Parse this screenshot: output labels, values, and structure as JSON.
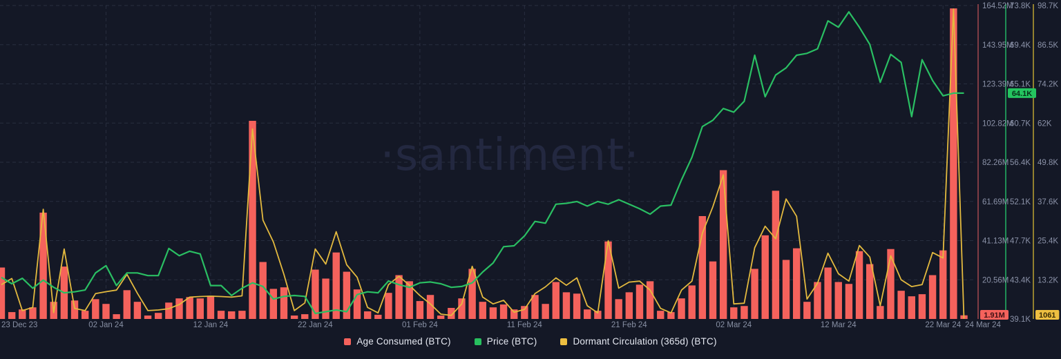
{
  "watermark": "·santiment·",
  "legend": {
    "items": [
      {
        "label": "Age Consumed (BTC)",
        "color": "#f5625c"
      },
      {
        "label": "Price (BTC)",
        "color": "#27c05e"
      },
      {
        "label": "Dormant Circulation (365d) (BTC)",
        "color": "#eebf41"
      }
    ]
  },
  "colors": {
    "background": "#141826",
    "grid": "rgba(152,162,196,0.16)",
    "tick_text": "#8b92a8",
    "x_tick_text": "#8890a4",
    "bar": "#f5625c",
    "price_line": "#2abf63",
    "dormant_line": "#e4ba3f",
    "axis_line_age": "#803c45",
    "axis_line_price": "#1f8f55",
    "axis_line_dormant": "#92802f",
    "badge_age_bg": "#f5625c",
    "badge_age_text": "#401014",
    "badge_price_bg": "#24c45f",
    "badge_price_text": "#06301a",
    "badge_dormant_bg": "#eebf41",
    "badge_dormant_text": "#3a2c05"
  },
  "chart_data": {
    "type": "mixed",
    "title": "",
    "x_range": [
      "23 Dec 23",
      "24 Mar 24"
    ],
    "grid": true,
    "legend_position": "bottom",
    "x_ticks": [
      {
        "label": "23 Dec 23",
        "day": 0
      },
      {
        "label": "02 Jan 24",
        "day": 10
      },
      {
        "label": "12 Jan 24",
        "day": 20
      },
      {
        "label": "22 Jan 24",
        "day": 30
      },
      {
        "label": "01 Feb 24",
        "day": 40
      },
      {
        "label": "11 Feb 24",
        "day": 50
      },
      {
        "label": "21 Feb 24",
        "day": 60
      },
      {
        "label": "02 Mar 24",
        "day": 70
      },
      {
        "label": "12 Mar 24",
        "day": 80
      },
      {
        "label": "22 Mar 24",
        "day": 90
      },
      {
        "label": "24 Mar 24",
        "day": 92
      }
    ],
    "series": [
      {
        "name": "Age Consumed (BTC)",
        "type": "bar",
        "unit": "M",
        "axis": {
          "min": 0,
          "max": 164.52,
          "ticks": [
            "164.52M",
            "143.95M",
            "123.39M",
            "102.82M",
            "82.26M",
            "61.69M",
            "41.13M",
            "20.56M"
          ],
          "current_badge": "1.91M",
          "current_value": 1.91
        },
        "values": [
          27,
          3.6,
          5,
          6.1,
          55.8,
          9,
          27.5,
          9.7,
          4.3,
          10.4,
          7.9,
          2.5,
          15.1,
          9,
          1.8,
          3.2,
          8.6,
          10.8,
          11.5,
          10.8,
          12.2,
          4.3,
          4,
          4.3,
          104,
          29.9,
          15.8,
          16.6,
          1.8,
          2.5,
          25.9,
          21.2,
          34.9,
          24.8,
          15.5,
          4,
          2.2,
          13.7,
          23,
          19.8,
          9.4,
          12.6,
          1.8,
          5.8,
          10.8,
          26.3,
          9,
          6.1,
          7.6,
          5,
          6.8,
          12.6,
          7.9,
          19.4,
          14,
          13.3,
          5,
          4.3,
          40.7,
          10.4,
          14,
          18,
          19.8,
          4.3,
          3.6,
          10.8,
          17.6,
          54,
          30.2,
          78.1,
          6.1,
          6.8,
          26.3,
          43.9,
          67.3,
          31,
          37.1,
          9,
          19.4,
          27,
          19.4,
          18.4,
          35.6,
          28.8,
          6.8,
          36.7,
          14.8,
          11.9,
          13,
          23,
          36,
          163,
          1.91
        ]
      },
      {
        "name": "Price (BTC)",
        "type": "line",
        "unit": "K",
        "axis": {
          "min": 39.1,
          "max": 73.8,
          "ticks": [
            "73.8K",
            "69.4K",
            "65.1K",
            "60.7K",
            "56.4K",
            "52.1K",
            "47.7K",
            "43.4K",
            "39.1K"
          ],
          "current_badge": "64.1K",
          "current_value": 64.1
        },
        "values": [
          43.7,
          43.0,
          43.6,
          42.5,
          43.4,
          42.6,
          42.0,
          42.1,
          42.3,
          44.2,
          45.0,
          42.8,
          44.2,
          44.2,
          43.9,
          43.9,
          46.9,
          46.1,
          46.6,
          46.3,
          42.8,
          42.8,
          41.7,
          42.5,
          43.1,
          42.7,
          41.3,
          41.6,
          41.7,
          41.6,
          39.7,
          39.9,
          40.1,
          39.9,
          41.8,
          42.1,
          42.0,
          43.3,
          42.9,
          42.6,
          43.1,
          43.2,
          43.0,
          42.6,
          42.7,
          43.1,
          44.3,
          45.3,
          47.1,
          47.2,
          48.3,
          49.9,
          49.7,
          51.8,
          51.9,
          52.1,
          51.6,
          52.1,
          51.8,
          52.3,
          51.8,
          51.3,
          50.7,
          51.6,
          51.7,
          54.5,
          57.0,
          60.4,
          61.1,
          62.4,
          62.0,
          63.2,
          68.3,
          63.7,
          66.1,
          66.9,
          68.3,
          68.5,
          69.0,
          72.1,
          71.4,
          73.1,
          71.4,
          69.5,
          65.3,
          68.4,
          67.5,
          61.5,
          67.8,
          65.5,
          63.8,
          64.1,
          64.1
        ]
      },
      {
        "name": "Dormant Circulation (365d) (BTC)",
        "type": "line",
        "unit": "K",
        "axis": {
          "min": 1.0,
          "max": 98.7,
          "ticks": [
            "98.7K",
            "86.5K",
            "74.2K",
            "62K",
            "49.8K",
            "37.6K",
            "25.4K",
            "13.2K"
          ],
          "current_badge": "1061",
          "current_value": 1.061
        },
        "values": [
          11.7,
          13.6,
          3.6,
          4.6,
          35.2,
          3.0,
          22.8,
          4.3,
          3.6,
          8.9,
          9.5,
          10.0,
          14.9,
          9.0,
          3.6,
          3.8,
          4.2,
          5.5,
          7.8,
          8.0,
          8.1,
          8.0,
          7.8,
          8.2,
          60.2,
          31.8,
          25.0,
          14.9,
          3.6,
          6.0,
          22.8,
          18.1,
          28.2,
          17.9,
          14.0,
          4.6,
          2.9,
          11.7,
          14.3,
          11.5,
          8.3,
          5.7,
          2.5,
          2.1,
          5.7,
          17.4,
          7.8,
          5.7,
          6.8,
          3.1,
          4.0,
          8.9,
          11.0,
          13.8,
          11.5,
          13.8,
          5.1,
          2.9,
          25.4,
          10.6,
          12.5,
          12.8,
          10.0,
          4.3,
          2.9,
          10.0,
          12.8,
          27.7,
          36.0,
          45.9,
          5.7,
          5.9,
          23.2,
          29.9,
          26.0,
          38.4,
          33.0,
          7.2,
          12.1,
          21.5,
          15.1,
          12.8,
          23.9,
          20.3,
          5.1,
          20.7,
          13.2,
          11.1,
          11.7,
          21.7,
          20.0,
          97.6,
          1.06
        ]
      }
    ]
  }
}
